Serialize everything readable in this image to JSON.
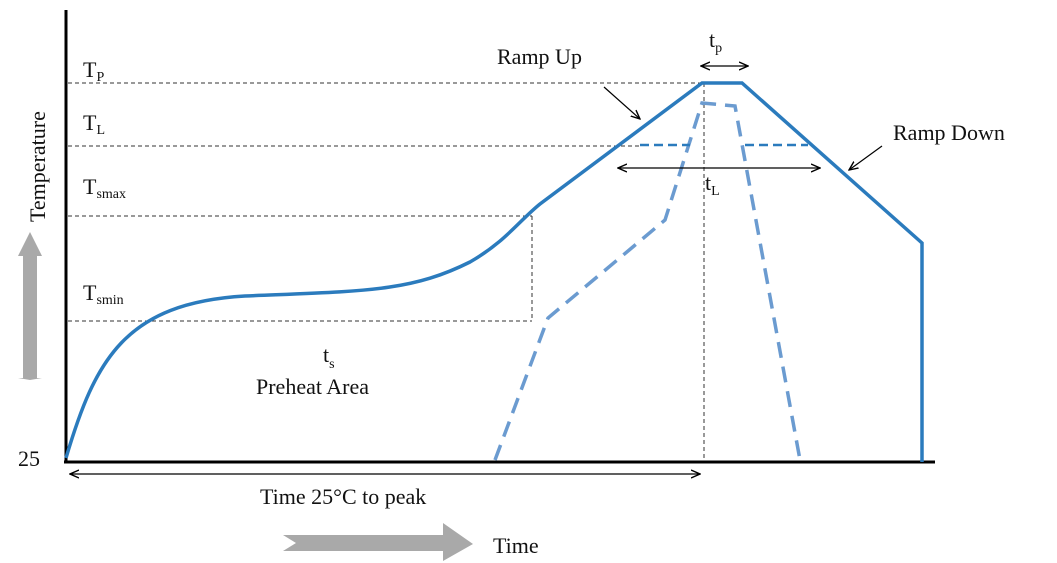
{
  "colors": {
    "profile": "#2b7bbd",
    "profile_dashed": "#6b9bd0",
    "axis": "#000000",
    "guide": "#333333",
    "arrow_gray": "#a9a9a9"
  },
  "axes": {
    "y_label": "Temperature",
    "x_label": "Time",
    "origin_value": "25"
  },
  "levels": {
    "tp": {
      "main": "T",
      "sub": "P"
    },
    "tl": {
      "main": "T",
      "sub": "L"
    },
    "tsmax": {
      "main": "T",
      "sub": "smax"
    },
    "tsmin": {
      "main": "T",
      "sub": "smin"
    }
  },
  "annotations": {
    "ramp_up": "Ramp Up",
    "ramp_down": "Ramp Down",
    "tp_dur": {
      "main": "t",
      "sub": "p"
    },
    "tl_dur": {
      "main": "t",
      "sub": "L"
    },
    "ts": {
      "main": "t",
      "sub": "s"
    },
    "preheat": "Preheat Area",
    "time_to_peak": "Time 25°C to peak"
  }
}
